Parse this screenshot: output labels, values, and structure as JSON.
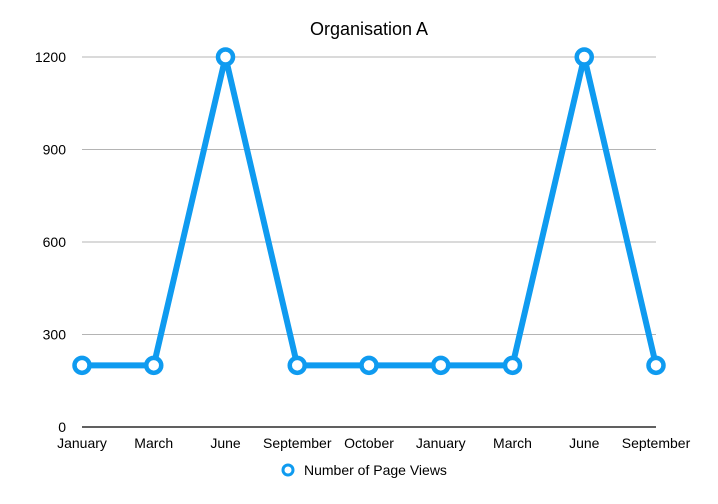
{
  "chart_data": {
    "type": "line",
    "title": "Organisation A",
    "xlabel": "",
    "ylabel": "",
    "categories": [
      "January",
      "March",
      "June",
      "September",
      "October",
      "January",
      "March",
      "June",
      "September"
    ],
    "series": [
      {
        "name": "Number of Page Views",
        "values": [
          200,
          200,
          1200,
          200,
          200,
          200,
          200,
          1200,
          200
        ],
        "color": "#0F9BF0"
      }
    ],
    "y_ticks": [
      "0",
      "300",
      "600",
      "900",
      "1200"
    ],
    "ylim": [
      0,
      1200
    ],
    "grid": true,
    "legend_position": "bottom"
  }
}
